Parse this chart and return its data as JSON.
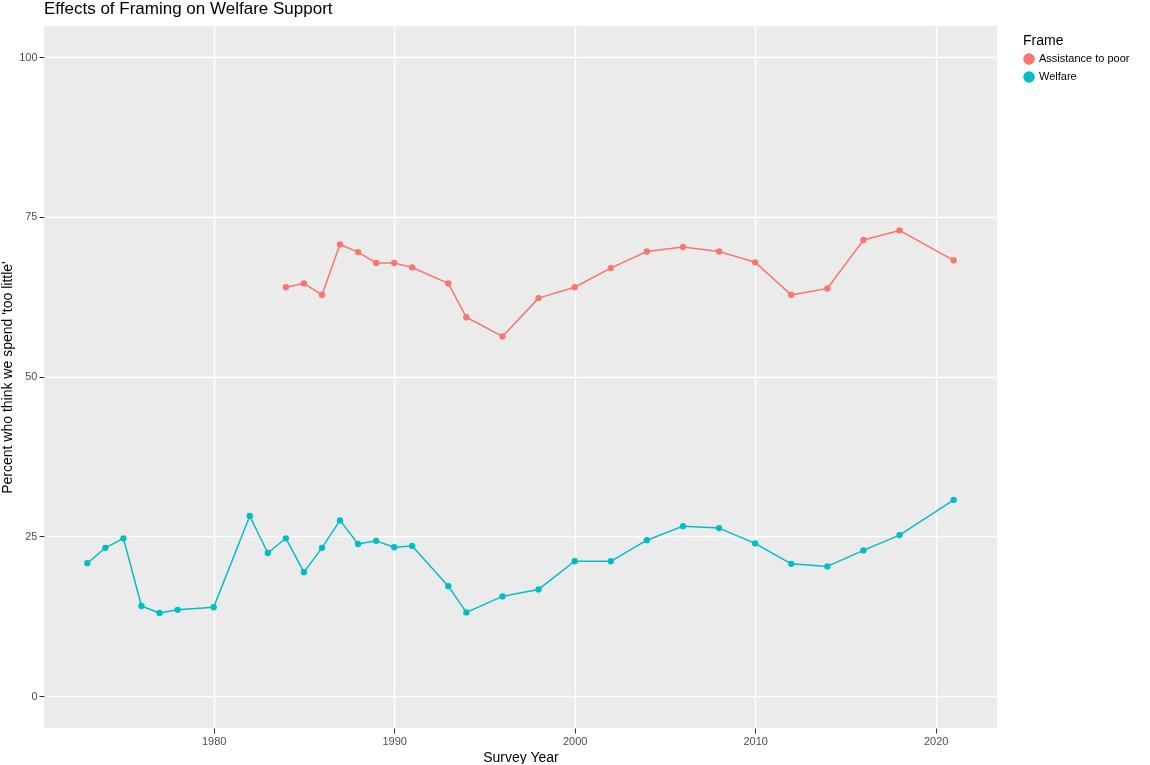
{
  "chart_data": {
    "type": "line",
    "title": "Effects of Framing on Welfare Support",
    "xlabel": "Survey Year",
    "ylabel": "Percent who think we spend 'too little'",
    "legend_title": "Frame",
    "legend": "right",
    "grid": true,
    "marker": "circle",
    "line_style": "solid",
    "xlim": [
      1970.6,
      2023.4
    ],
    "xticks": [
      1980,
      1990,
      2000,
      2010,
      2020
    ],
    "ylim": [
      -5,
      104.9
    ],
    "yticks": [
      0,
      25,
      50,
      75,
      100
    ],
    "series": [
      {
        "name": "Assistance to poor",
        "color": "#f8766d",
        "x": [
          1984,
          1985,
          1986,
          1987,
          1988,
          1989,
          1990,
          1991,
          1993,
          1994,
          1996,
          1998,
          2000,
          2002,
          2004,
          2006,
          2008,
          2010,
          2012,
          2014,
          2016,
          2018,
          2021
        ],
        "values": [
          64.0,
          64.6,
          62.8,
          70.7,
          69.5,
          67.8,
          67.8,
          67.1,
          64.6,
          59.3,
          56.3,
          62.3,
          64.0,
          67.0,
          69.6,
          70.3,
          69.6,
          67.9,
          62.8,
          63.8,
          71.4,
          72.9,
          68.2
        ]
      },
      {
        "name": "Welfare",
        "color": "#00bfc4",
        "x": [
          1973,
          1974,
          1975,
          1976,
          1977,
          1978,
          1980,
          1982,
          1983,
          1984,
          1985,
          1986,
          1987,
          1988,
          1989,
          1990,
          1991,
          1993,
          1994,
          1996,
          1998,
          2000,
          2002,
          2004,
          2006,
          2008,
          2010,
          2012,
          2014,
          2016,
          2018,
          2021
        ],
        "values": [
          20.8,
          23.2,
          24.7,
          14.1,
          13.0,
          13.5,
          13.9,
          28.2,
          22.4,
          24.7,
          19.4,
          23.2,
          27.5,
          23.8,
          24.3,
          23.3,
          23.5,
          17.2,
          13.1,
          15.6,
          16.7,
          21.1,
          21.1,
          24.4,
          26.6,
          26.3,
          23.9,
          20.7,
          20.3,
          22.8,
          25.2,
          30.7
        ]
      }
    ]
  }
}
